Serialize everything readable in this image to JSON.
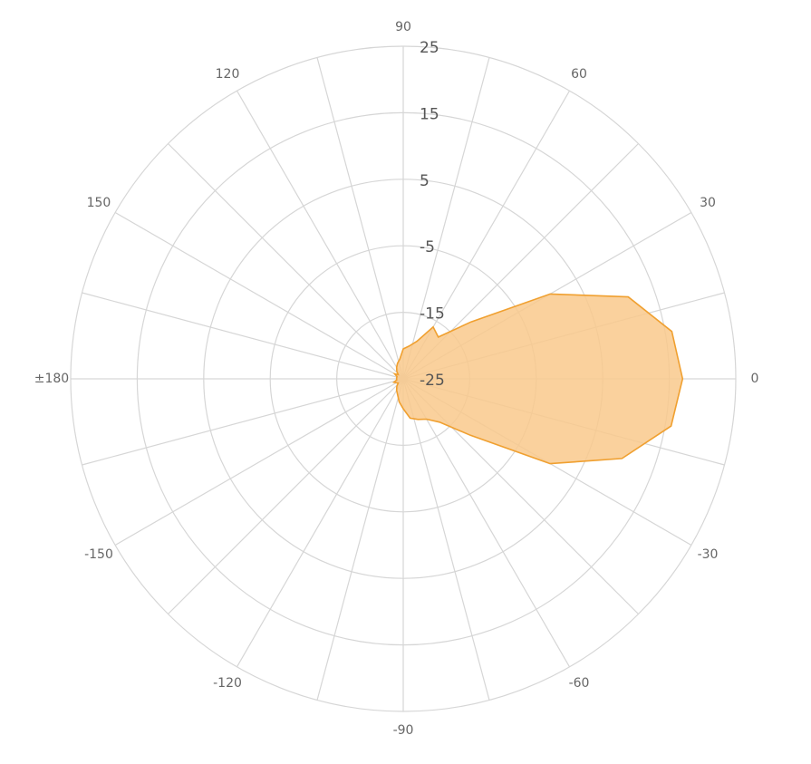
{
  "chart_data": {
    "type": "polar_area",
    "x": [
      -180,
      -170,
      -160,
      -150,
      -140,
      -130,
      -120,
      -110,
      -100,
      -90,
      -80,
      -70,
      -60,
      -50,
      -40,
      -30,
      -20,
      -10,
      0,
      10,
      20,
      30,
      40,
      50,
      60,
      70,
      80,
      90,
      100,
      110,
      120,
      130,
      140,
      150,
      160,
      170
    ],
    "values": [
      -24,
      -24,
      -23.5,
      -23.8,
      -24,
      -23.5,
      -23,
      -22.5,
      -21.5,
      -20.5,
      -19,
      -18.5,
      -18,
      -16.5,
      -11.8,
      0.5,
      10,
      15.9,
      17,
      16,
      11,
      0.5,
      -11.7,
      -16.8,
      -16,
      -19,
      -20,
      -20.5,
      -22,
      -22.5,
      -23,
      -23.5,
      -24,
      -23.5,
      -24,
      -24
    ],
    "color": "#f0a030",
    "fill": "#f9c98c",
    "ylim": [
      -25,
      25
    ],
    "yticks": [
      -25,
      -15,
      -5,
      5,
      15,
      25
    ],
    "xticks": [
      0,
      30,
      60,
      90,
      120,
      150,
      {
        "value": 180,
        "label": "±180"
      },
      -150,
      -120,
      -90,
      -60,
      -30
    ],
    "minor_xticks": [
      15,
      45,
      75,
      105,
      135,
      165,
      -165,
      -135,
      -105,
      -75,
      -45,
      -15
    ],
    "grid": true
  }
}
